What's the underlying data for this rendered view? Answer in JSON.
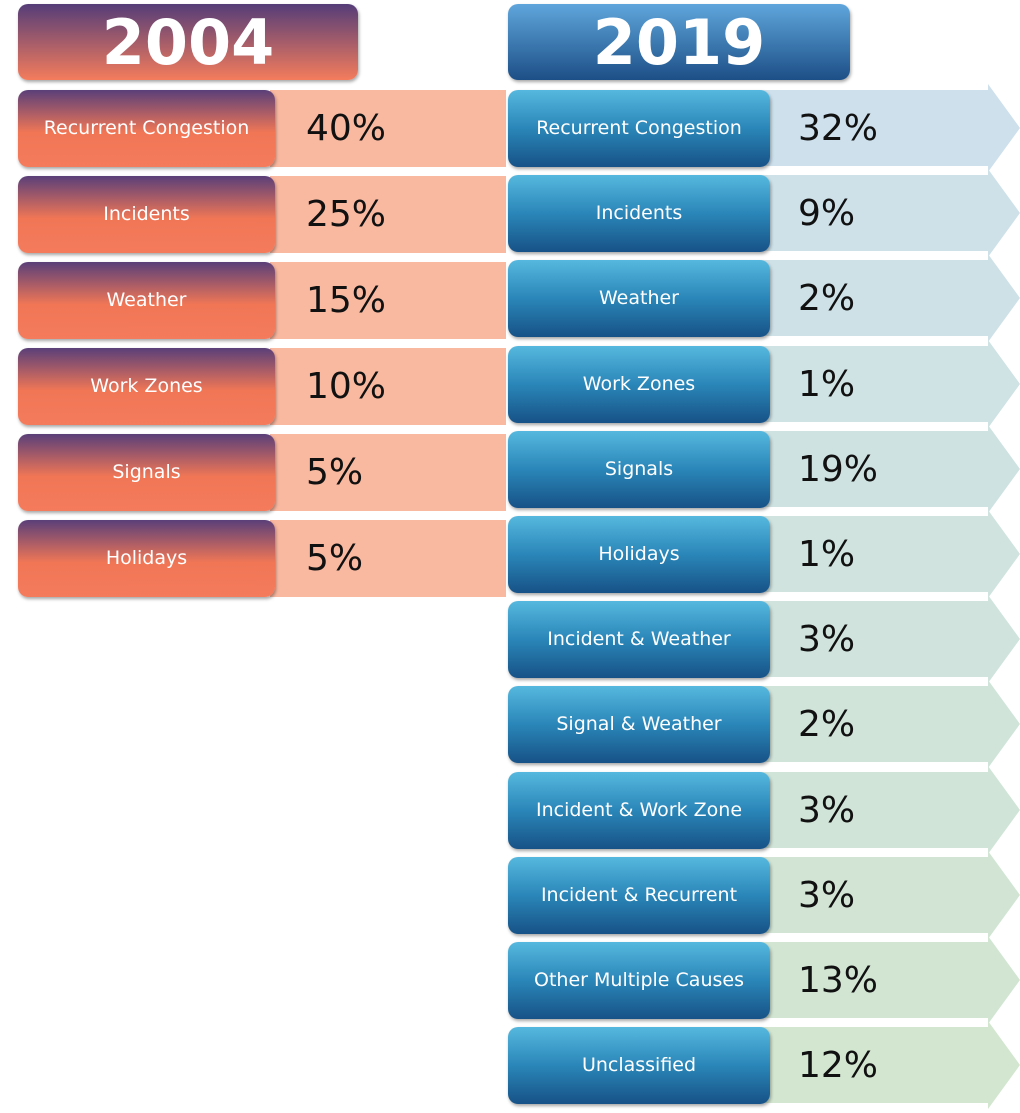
{
  "columns": [
    {
      "title": "2004",
      "items": [
        {
          "label": "Recurrent Congestion",
          "value": "40%"
        },
        {
          "label": "Incidents",
          "value": "25%"
        },
        {
          "label": "Weather",
          "value": "15%"
        },
        {
          "label": "Work Zones",
          "value": "10%"
        },
        {
          "label": "Signals",
          "value": "5%"
        },
        {
          "label": "Holidays",
          "value": "5%"
        }
      ]
    },
    {
      "title": "2019",
      "items": [
        {
          "label": "Recurrent Congestion",
          "value": "32%"
        },
        {
          "label": "Incidents",
          "value": "9%"
        },
        {
          "label": "Weather",
          "value": "2%"
        },
        {
          "label": "Work Zones",
          "value": "1%"
        },
        {
          "label": "Signals",
          "value": "19%"
        },
        {
          "label": "Holidays",
          "value": "1%"
        },
        {
          "label": "Incident & Weather",
          "value": "3%"
        },
        {
          "label": "Signal & Weather",
          "value": "2%"
        },
        {
          "label": "Incident & Work Zone",
          "value": "3%"
        },
        {
          "label": "Incident & Recurrent",
          "value": "3%"
        },
        {
          "label": "Other Multiple Causes",
          "value": "13%"
        },
        {
          "label": "Unclassified",
          "value": "12%"
        }
      ]
    }
  ]
}
